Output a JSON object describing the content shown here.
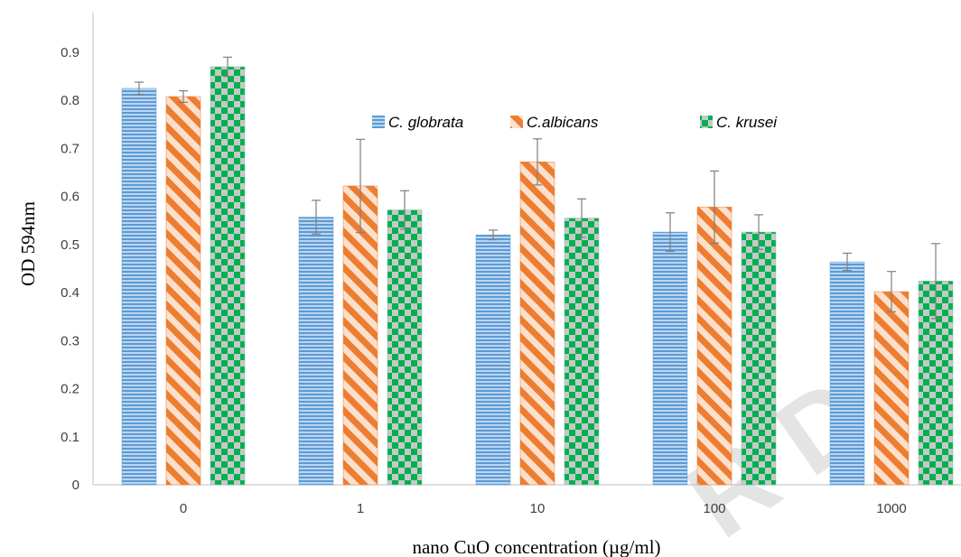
{
  "chart_data": {
    "type": "bar",
    "title": "",
    "xlabel": "nano CuO concentration (µg/ml)",
    "ylabel": "OD 594nm",
    "categories": [
      "0",
      "1",
      "10",
      "100",
      "1000"
    ],
    "ylim": [
      0,
      0.9
    ],
    "yticks": [
      "0",
      "0.1",
      "0.2",
      "0.3",
      "0.4",
      "0.5",
      "0.6",
      "0.7",
      "0.8",
      "0.9"
    ],
    "grid": false,
    "legend_position": "top-center",
    "series": [
      {
        "name": "C. globrata",
        "color": "#5b9bd5",
        "pattern": "horizontal-stripes",
        "values": [
          0.825,
          0.557,
          0.52,
          0.526,
          0.464
        ],
        "errors": [
          0.013,
          0.035,
          0.01,
          0.04,
          0.018
        ]
      },
      {
        "name": "C.albicans",
        "color": "#ed7d31",
        "pattern": "diagonal-stripes",
        "values": [
          0.808,
          0.622,
          0.672,
          0.578,
          0.402
        ],
        "errors": [
          0.012,
          0.097,
          0.048,
          0.075,
          0.042
        ]
      },
      {
        "name": "C. krusei",
        "color": "#00b050",
        "pattern": "checkerboard",
        "values": [
          0.87,
          0.572,
          0.555,
          0.526,
          0.424
        ],
        "errors": [
          0.02,
          0.04,
          0.04,
          0.036,
          0.078
        ]
      }
    ]
  },
  "watermark_text": "R D"
}
